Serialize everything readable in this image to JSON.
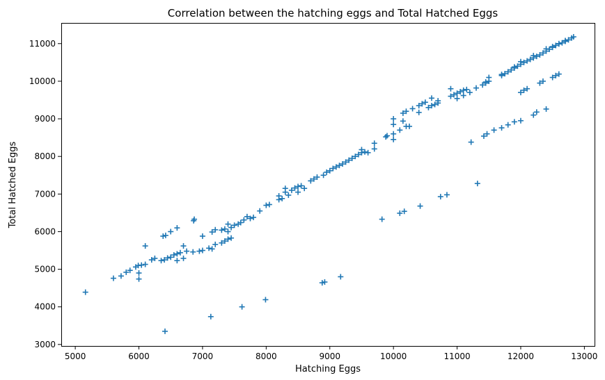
{
  "chart_data": {
    "type": "scatter",
    "title": "Correlation between the hatching eggs and Total Hatched Eggs",
    "xlabel": "Hatching Eggs",
    "ylabel": "Total Hatched Eggs",
    "xlim": [
      4780,
      13160
    ],
    "ylim": [
      2960,
      11550
    ],
    "xticks": [
      5000,
      6000,
      7000,
      8000,
      9000,
      10000,
      11000,
      12000,
      13000
    ],
    "yticks": [
      3000,
      4000,
      5000,
      6000,
      7000,
      8000,
      9000,
      10000,
      11000
    ],
    "marker": "+",
    "color": "#1f77b4",
    "grid": false,
    "series": [
      {
        "name": "",
        "points": [
          [
            5160,
            4390
          ],
          [
            5600,
            4760
          ],
          [
            5720,
            4820
          ],
          [
            5800,
            4920
          ],
          [
            5860,
            4970
          ],
          [
            5950,
            5060
          ],
          [
            5990,
            5100
          ],
          [
            6040,
            5110
          ],
          [
            6100,
            5130
          ],
          [
            6000,
            4900
          ],
          [
            6000,
            4740
          ],
          [
            6100,
            5620
          ],
          [
            6200,
            5250
          ],
          [
            6250,
            5290
          ],
          [
            6350,
            5230
          ],
          [
            6400,
            5250
          ],
          [
            6450,
            5300
          ],
          [
            6500,
            5320
          ],
          [
            6550,
            5380
          ],
          [
            6600,
            5410
          ],
          [
            6650,
            5440
          ],
          [
            6700,
            5290
          ],
          [
            6600,
            5230
          ],
          [
            6700,
            5620
          ],
          [
            6750,
            5480
          ],
          [
            6850,
            5460
          ],
          [
            6950,
            5480
          ],
          [
            7000,
            5500
          ],
          [
            7100,
            5560
          ],
          [
            7150,
            5540
          ],
          [
            7200,
            5660
          ],
          [
            7300,
            5700
          ],
          [
            7350,
            5750
          ],
          [
            7400,
            5800
          ],
          [
            7450,
            5830
          ],
          [
            6380,
            5880
          ],
          [
            6420,
            5900
          ],
          [
            6500,
            6000
          ],
          [
            6600,
            6100
          ],
          [
            6860,
            6290
          ],
          [
            6870,
            6330
          ],
          [
            7000,
            5880
          ],
          [
            7150,
            5990
          ],
          [
            7200,
            6050
          ],
          [
            7300,
            6040
          ],
          [
            7350,
            6070
          ],
          [
            7400,
            6200
          ],
          [
            7450,
            6110
          ],
          [
            7500,
            6170
          ],
          [
            7560,
            6200
          ],
          [
            7600,
            6240
          ],
          [
            7400,
            6000
          ],
          [
            7650,
            6310
          ],
          [
            7700,
            6400
          ],
          [
            7750,
            6350
          ],
          [
            7800,
            6380
          ],
          [
            7900,
            6550
          ],
          [
            8000,
            6700
          ],
          [
            8050,
            6720
          ],
          [
            8200,
            6850
          ],
          [
            8200,
            6950
          ],
          [
            8250,
            6880
          ],
          [
            8300,
            7050
          ],
          [
            8350,
            6970
          ],
          [
            8300,
            7150
          ],
          [
            8400,
            7100
          ],
          [
            8450,
            7160
          ],
          [
            8500,
            7200
          ],
          [
            8550,
            7220
          ],
          [
            8500,
            7050
          ],
          [
            8600,
            7150
          ],
          [
            8700,
            7350
          ],
          [
            8750,
            7400
          ],
          [
            8800,
            7450
          ],
          [
            8900,
            7500
          ],
          [
            8950,
            7580
          ],
          [
            9000,
            7620
          ],
          [
            9050,
            7680
          ],
          [
            9100,
            7720
          ],
          [
            9150,
            7760
          ],
          [
            9200,
            7800
          ],
          [
            9250,
            7850
          ],
          [
            9300,
            7900
          ],
          [
            9350,
            7950
          ],
          [
            9400,
            8000
          ],
          [
            9450,
            8050
          ],
          [
            9500,
            8100
          ],
          [
            9550,
            8120
          ],
          [
            9500,
            8180
          ],
          [
            9600,
            8100
          ],
          [
            9700,
            8200
          ],
          [
            9700,
            8350
          ],
          [
            9880,
            8520
          ],
          [
            9900,
            8550
          ],
          [
            10000,
            8600
          ],
          [
            10000,
            8450
          ],
          [
            10100,
            8700
          ],
          [
            10000,
            8850
          ],
          [
            10000,
            9000
          ],
          [
            10150,
            8940
          ],
          [
            10200,
            8800
          ],
          [
            10250,
            8800
          ],
          [
            10150,
            9150
          ],
          [
            10200,
            9200
          ],
          [
            10300,
            9270
          ],
          [
            10400,
            9350
          ],
          [
            10450,
            9400
          ],
          [
            10500,
            9440
          ],
          [
            10550,
            9300
          ],
          [
            10600,
            9350
          ],
          [
            10650,
            9380
          ],
          [
            10700,
            9420
          ],
          [
            10400,
            9170
          ],
          [
            10600,
            9550
          ],
          [
            10700,
            9480
          ],
          [
            10900,
            9600
          ],
          [
            10950,
            9640
          ],
          [
            11000,
            9680
          ],
          [
            11050,
            9720
          ],
          [
            11100,
            9760
          ],
          [
            11150,
            9780
          ],
          [
            11000,
            9540
          ],
          [
            11100,
            9620
          ],
          [
            10900,
            9800
          ],
          [
            11200,
            9700
          ],
          [
            11300,
            9820
          ],
          [
            11400,
            9900
          ],
          [
            11450,
            9950
          ],
          [
            11500,
            10000
          ],
          [
            11500,
            10100
          ],
          [
            11450,
            9980
          ],
          [
            11700,
            10150
          ],
          [
            11750,
            10200
          ],
          [
            11800,
            10250
          ],
          [
            11850,
            10300
          ],
          [
            11900,
            10350
          ],
          [
            11950,
            10400
          ],
          [
            12000,
            10450
          ],
          [
            12050,
            10500
          ],
          [
            12100,
            10540
          ],
          [
            12150,
            10580
          ],
          [
            12200,
            10620
          ],
          [
            12250,
            10660
          ],
          [
            12300,
            10700
          ],
          [
            12350,
            10750
          ],
          [
            12400,
            10800
          ],
          [
            12450,
            10850
          ],
          [
            12500,
            10900
          ],
          [
            12550,
            10950
          ],
          [
            12600,
            10990
          ],
          [
            12650,
            11020
          ],
          [
            12700,
            11060
          ],
          [
            12750,
            11100
          ],
          [
            12800,
            11150
          ],
          [
            12830,
            11180
          ],
          [
            11700,
            10180
          ],
          [
            11900,
            10380
          ],
          [
            12000,
            10520
          ],
          [
            12200,
            10680
          ],
          [
            12400,
            10860
          ],
          [
            12500,
            10920
          ],
          [
            12600,
            11000
          ],
          [
            12700,
            11080
          ],
          [
            11220,
            8380
          ],
          [
            11420,
            8540
          ],
          [
            11470,
            8600
          ],
          [
            11580,
            8700
          ],
          [
            11700,
            8760
          ],
          [
            11800,
            8840
          ],
          [
            11900,
            8920
          ],
          [
            12000,
            8950
          ],
          [
            12000,
            9700
          ],
          [
            12050,
            9760
          ],
          [
            12100,
            9800
          ],
          [
            12200,
            9100
          ],
          [
            12250,
            9180
          ],
          [
            12300,
            9950
          ],
          [
            12350,
            10000
          ],
          [
            12400,
            9260
          ],
          [
            12500,
            10100
          ],
          [
            12550,
            10150
          ],
          [
            12600,
            10190
          ],
          [
            9820,
            6330
          ],
          [
            10100,
            6490
          ],
          [
            10170,
            6540
          ],
          [
            10420,
            6680
          ],
          [
            10740,
            6930
          ],
          [
            10840,
            6980
          ],
          [
            11320,
            7280
          ],
          [
            6410,
            3350
          ],
          [
            7130,
            3740
          ],
          [
            7620,
            4000
          ],
          [
            7990,
            4190
          ],
          [
            8880,
            4640
          ],
          [
            8920,
            4660
          ],
          [
            9170,
            4800
          ]
        ]
      }
    ]
  }
}
